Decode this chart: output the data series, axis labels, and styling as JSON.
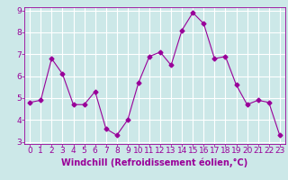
{
  "x": [
    0,
    1,
    2,
    3,
    4,
    5,
    6,
    7,
    8,
    9,
    10,
    11,
    12,
    13,
    14,
    15,
    16,
    17,
    18,
    19,
    20,
    21,
    22,
    23
  ],
  "y": [
    4.8,
    4.9,
    6.8,
    6.1,
    4.7,
    4.7,
    5.3,
    3.6,
    3.3,
    4.0,
    5.7,
    6.9,
    7.1,
    6.5,
    8.1,
    8.9,
    8.4,
    6.8,
    6.9,
    5.6,
    4.7,
    4.9,
    4.8,
    3.3
  ],
  "line_color": "#990099",
  "marker": "D",
  "marker_size": 2.5,
  "bg_color": "#cce8e8",
  "grid_color": "#ffffff",
  "xlabel": "Windchill (Refroidissement éolien,°C)",
  "xlabel_fontsize": 7,
  "tick_color": "#990099",
  "tick_fontsize": 6.5,
  "ylim": [
    3,
    9
  ],
  "xlim": [
    -0.5,
    23.5
  ],
  "yticks": [
    3,
    4,
    5,
    6,
    7,
    8,
    9
  ],
  "xticks": [
    0,
    1,
    2,
    3,
    4,
    5,
    6,
    7,
    8,
    9,
    10,
    11,
    12,
    13,
    14,
    15,
    16,
    17,
    18,
    19,
    20,
    21,
    22,
    23
  ]
}
